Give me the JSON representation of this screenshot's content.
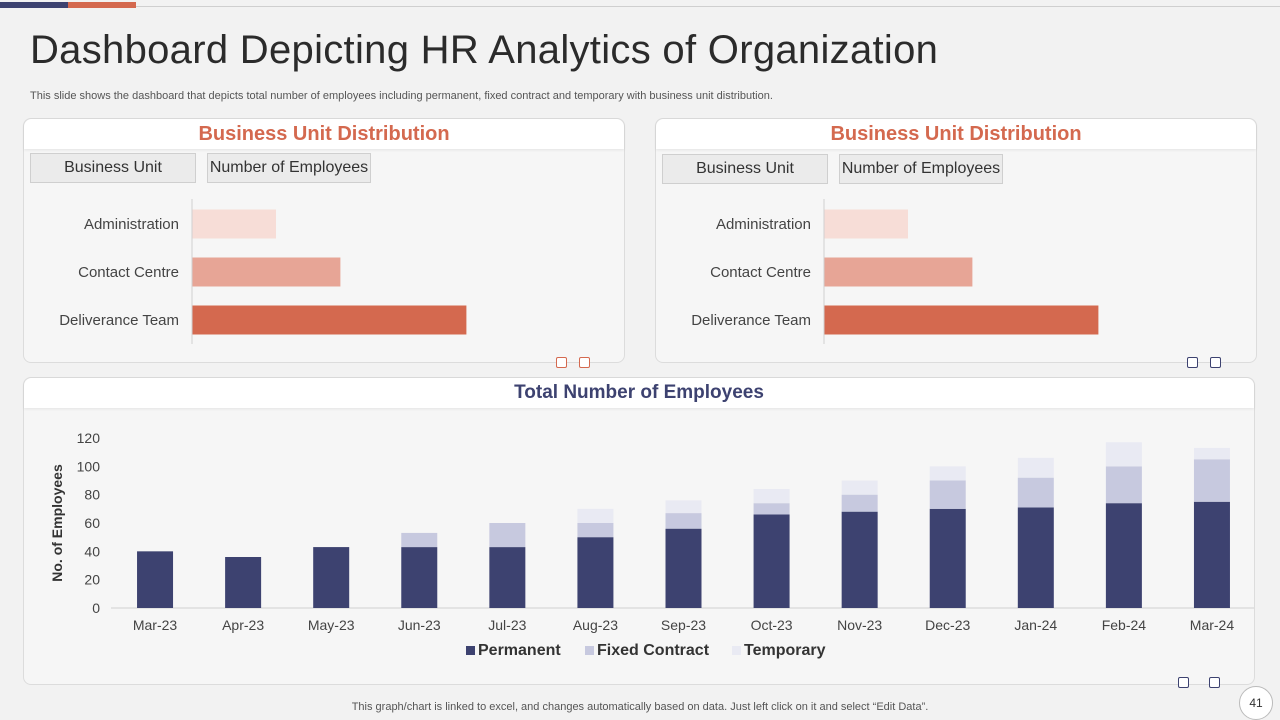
{
  "title": "Dashboard Depicting HR Analytics of Organization",
  "subtitle": "This slide shows the dashboard that depicts total number of employees including permanent, fixed contract and temporary with business unit distribution.",
  "colors": {
    "accent_orange": "#d4694f",
    "navy": "#3d4270",
    "bar_light": "#f7ddd7",
    "bar_mid": "#e7a596",
    "bar_dark": "#d4694f",
    "fixed": "#c7c9df",
    "temporary": "#e9eaf3"
  },
  "panels": [
    {
      "title": "Business Unit Distribution",
      "header_unit": "Business Unit",
      "header_count": "Number of Employees"
    },
    {
      "title": "Business Unit Distribution",
      "header_unit": "Business Unit",
      "header_count": "Number of Employees"
    }
  ],
  "bottom_panel": {
    "title": "Total Number of Employees"
  },
  "footnote": "This graph/chart is linked to excel,  and changes automatically based on data. Just left click on it and select “Edit Data”.",
  "page_number": "41",
  "chart_data": [
    {
      "type": "bar",
      "orientation": "horizontal",
      "title": "Business Unit Distribution",
      "categories": [
        "Administration",
        "Contact Centre",
        "Deliverance Team"
      ],
      "values": [
        30,
        53,
        98
      ],
      "xlim": [
        0,
        100
      ],
      "legend": "none"
    },
    {
      "type": "bar",
      "orientation": "horizontal",
      "title": "Business Unit Distribution",
      "categories": [
        "Administration",
        "Contact Centre",
        "Deliverance Team"
      ],
      "values": [
        30,
        53,
        98
      ],
      "xlim": [
        0,
        100
      ],
      "legend": "none"
    },
    {
      "type": "bar",
      "stacked": true,
      "title": "Total Number of Employees",
      "ylabel": "No. of Employees",
      "xlabel": "",
      "ylim": [
        0,
        120
      ],
      "yticks": [
        0,
        20,
        40,
        60,
        80,
        100,
        120
      ],
      "categories": [
        "Mar-23",
        "Apr-23",
        "May-23",
        "Jun-23",
        "Jul-23",
        "Aug-23",
        "Sep-23",
        "Oct-23",
        "Nov-23",
        "Dec-23",
        "Jan-24",
        "Feb-24",
        "Mar-24"
      ],
      "series": [
        {
          "name": "Permanent",
          "values": [
            40,
            36,
            43,
            43,
            43,
            50,
            56,
            66,
            68,
            70,
            71,
            74,
            75
          ]
        },
        {
          "name": "Fixed Contract",
          "values": [
            0,
            0,
            0,
            10,
            17,
            10,
            11,
            8,
            12,
            20,
            21,
            26,
            30
          ]
        },
        {
          "name": "Temporary",
          "values": [
            0,
            0,
            0,
            0,
            0,
            10,
            9,
            10,
            10,
            10,
            14,
            17,
            8
          ]
        }
      ],
      "legend": "bottom-center",
      "grid": false
    }
  ]
}
